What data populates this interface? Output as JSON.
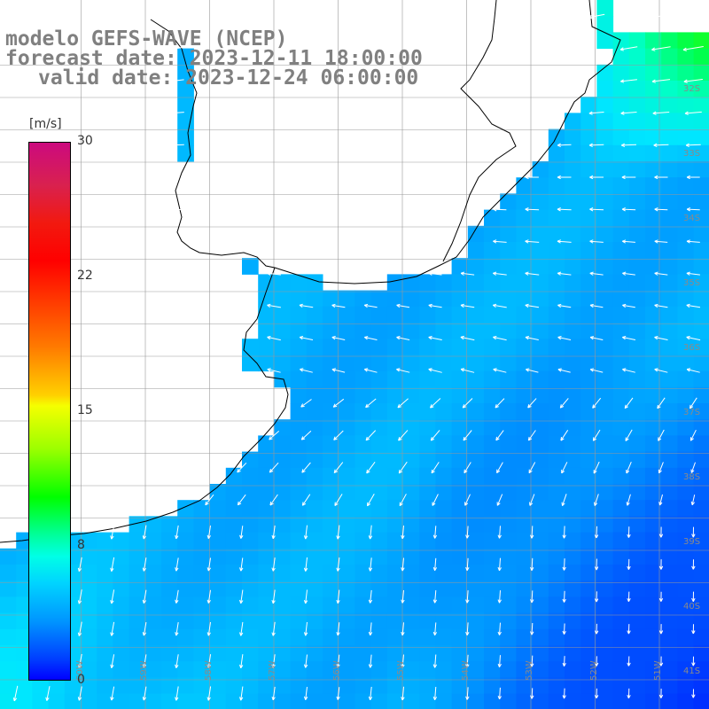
{
  "title": {
    "line1": "modelo GEFS-WAVE (NCEP)",
    "line2": "forecast date: 2023-12-11 18:00:00",
    "line3": "valid date: 2023-12-24 06:00:00"
  },
  "colorbar": {
    "units": "[m/s]",
    "ticks": [
      "30",
      "22",
      "15",
      "8",
      "0"
    ],
    "tick_values": [
      30,
      22,
      15,
      8,
      0
    ],
    "range": [
      0,
      30
    ],
    "colors": [
      "#0000ff",
      "#0096ff",
      "#00ffe6",
      "#00ff00",
      "#9cff00",
      "#f5ff00",
      "#ff7a00",
      "#ff0000",
      "#cc0a7f"
    ]
  },
  "map": {
    "lat_labels": [
      "32S",
      "33S",
      "34S",
      "35S",
      "36S",
      "37S",
      "38S",
      "39S",
      "40S",
      "41S"
    ],
    "lat_values": [
      -32,
      -33,
      -34,
      -35,
      -36,
      -37,
      -38,
      -39,
      -40,
      -41
    ],
    "lon_labels": [
      "60W",
      "59W",
      "58W",
      "57W",
      "56W",
      "55W",
      "54W",
      "53W",
      "52W",
      "51W"
    ],
    "lon_values": [
      -60,
      -59,
      -58,
      -57,
      -56,
      -55,
      -54,
      -53,
      -52,
      -51
    ],
    "land_color": "#ffffff",
    "grid_color": "#999999",
    "coast_color": "#000000",
    "arrow_color": "#ffffff"
  }
}
